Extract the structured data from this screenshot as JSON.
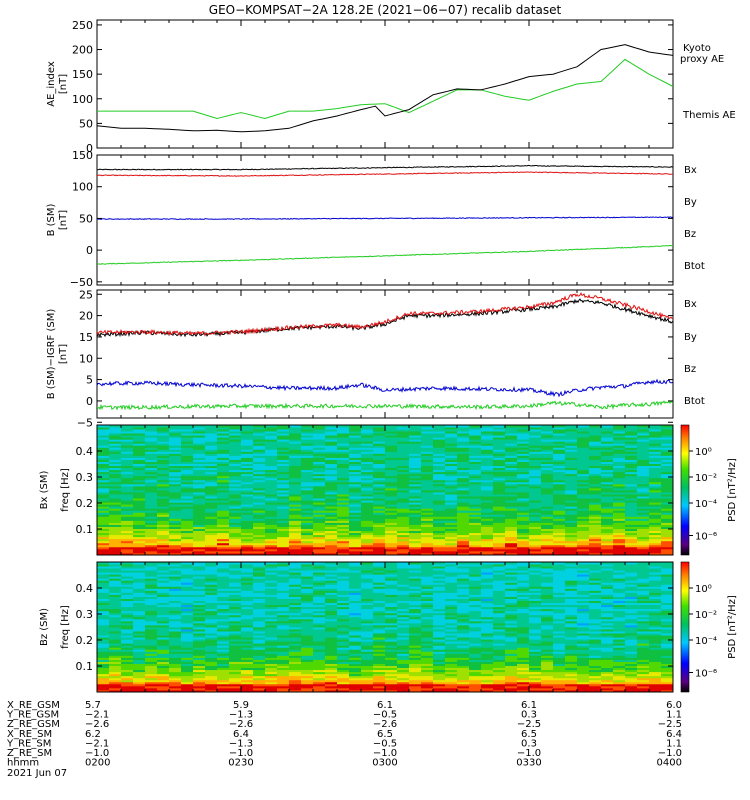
{
  "title": "GEO−KOMPSAT−2A 128.2E (2021−06−07) recalib dataset",
  "colors": {
    "black": "#000000",
    "red": "#e01010",
    "green": "#22cc22",
    "blue": "#0000d0"
  },
  "chart_data": [
    {
      "type": "line",
      "panel": "ae_index",
      "ylabel": [
        "AE_index",
        "[nT]"
      ],
      "ylim": [
        0,
        260
      ],
      "yticks": [
        0,
        50,
        100,
        150,
        200,
        250
      ],
      "xlim": [
        0,
        120
      ],
      "x_unit": "minutes after 0200 UT",
      "legend": [
        "Kyoto proxy AE",
        "Themis AE"
      ],
      "series": [
        {
          "name": "Kyoto proxy AE",
          "color": "#22cc22",
          "x": [
            0,
            10,
            20,
            25,
            30,
            35,
            40,
            45,
            50,
            55,
            60,
            65,
            70,
            75,
            80,
            85,
            90,
            95,
            100,
            105,
            110,
            115,
            120
          ],
          "values": [
            75,
            75,
            75,
            60,
            72,
            60,
            75,
            75,
            80,
            88,
            90,
            72,
            95,
            118,
            118,
            105,
            97,
            115,
            130,
            135,
            180,
            150,
            125
          ]
        },
        {
          "name": "Themis AE",
          "color": "#000000",
          "x": [
            0,
            5,
            10,
            15,
            20,
            25,
            30,
            35,
            40,
            45,
            50,
            55,
            58,
            60,
            65,
            70,
            75,
            80,
            85,
            90,
            95,
            100,
            105,
            110,
            115,
            120
          ],
          "values": [
            45,
            40,
            40,
            38,
            35,
            36,
            33,
            35,
            40,
            55,
            65,
            78,
            85,
            65,
            78,
            108,
            120,
            118,
            130,
            145,
            150,
            165,
            200,
            210,
            195,
            188
          ]
        }
      ]
    },
    {
      "type": "line",
      "panel": "b_sm",
      "ylabel": [
        "B (SM)",
        "[nT]"
      ],
      "ylim": [
        -55,
        150
      ],
      "yticks": [
        -50,
        0,
        50,
        100,
        150
      ],
      "xlim": [
        0,
        120
      ],
      "legend": [
        "Bx",
        "By",
        "Bz",
        "Btot"
      ],
      "series": [
        {
          "name": "Btot",
          "color": "#000000",
          "x": [
            0,
            30,
            60,
            90,
            120
          ],
          "values": [
            127,
            127,
            130,
            133,
            131
          ]
        },
        {
          "name": "Bz",
          "color": "#e01010",
          "x": [
            0,
            30,
            60,
            90,
            120
          ],
          "values": [
            118,
            117,
            120,
            123,
            120
          ]
        },
        {
          "name": "Bx",
          "color": "#0000d0",
          "x": [
            0,
            30,
            60,
            90,
            120
          ],
          "values": [
            49,
            49,
            50,
            51,
            52
          ]
        },
        {
          "name": "By",
          "color": "#22cc22",
          "x": [
            0,
            30,
            60,
            90,
            120
          ],
          "values": [
            -22,
            -16,
            -9,
            -2,
            7
          ]
        }
      ]
    },
    {
      "type": "line",
      "panel": "b_minus_igrf",
      "ylabel": [
        "B (SM)−IGRF (SM)",
        "[nT]"
      ],
      "ylim": [
        -4,
        26
      ],
      "yticks": [
        -5,
        0,
        5,
        10,
        15,
        20,
        25
      ],
      "xlim": [
        0,
        120
      ],
      "legend": [
        "Bx",
        "By",
        "Bz",
        "Btot"
      ],
      "series": [
        {
          "name": "Btot",
          "color": "#000000",
          "x": [
            0,
            10,
            20,
            30,
            40,
            50,
            55,
            60,
            65,
            70,
            80,
            90,
            95,
            100,
            105,
            110,
            115,
            120
          ],
          "values": [
            15.5,
            16,
            15.5,
            16,
            17,
            17.5,
            17,
            18,
            20,
            20,
            20.5,
            21.5,
            22,
            23.5,
            23,
            21.5,
            20,
            18.5
          ]
        },
        {
          "name": "Bz",
          "color": "#e01010",
          "x": [
            0,
            10,
            20,
            30,
            40,
            50,
            55,
            60,
            65,
            70,
            80,
            90,
            95,
            100,
            105,
            110,
            115,
            120
          ],
          "values": [
            16,
            16.2,
            15.8,
            16.2,
            17.2,
            17.8,
            17.3,
            18.5,
            20.5,
            20.5,
            21,
            22,
            23,
            25,
            24,
            22.5,
            21,
            19
          ]
        },
        {
          "name": "Bx",
          "color": "#0000d0",
          "x": [
            0,
            10,
            20,
            30,
            40,
            50,
            55,
            60,
            70,
            80,
            90,
            96,
            100,
            105,
            110,
            115,
            120
          ],
          "values": [
            4,
            4.2,
            3.8,
            3.5,
            3,
            3,
            3.8,
            2.5,
            3,
            2.8,
            2.6,
            1.5,
            2.5,
            3.2,
            3.5,
            4.5,
            4.5
          ]
        },
        {
          "name": "By",
          "color": "#22cc22",
          "x": [
            0,
            10,
            20,
            30,
            40,
            50,
            60,
            70,
            80,
            90,
            95,
            100,
            105,
            110,
            115,
            120
          ],
          "values": [
            -1.5,
            -1.5,
            -1.3,
            -1.2,
            -1.2,
            -1.2,
            -1.2,
            -1.3,
            -1.4,
            -1.2,
            -0.5,
            -0.8,
            -1.5,
            -1,
            -0.8,
            -0.2
          ]
        }
      ]
    },
    {
      "type": "heatmap",
      "panel": "bx_spectrogram",
      "ylabel": [
        "Bx (SM)",
        "freq [Hz]"
      ],
      "ylim": [
        0,
        0.5
      ],
      "yticks": [
        0.1,
        0.2,
        0.3,
        0.4
      ],
      "colorbar_label": "PSD [nT²/Hz]",
      "colorbar_ticks": [
        "10⁰",
        "10⁻²",
        "10⁻⁴",
        "10⁻⁶"
      ]
    },
    {
      "type": "heatmap",
      "panel": "bz_spectrogram",
      "ylabel": [
        "Bz (SM)",
        "freq [Hz]"
      ],
      "ylim": [
        0,
        0.5
      ],
      "yticks": [
        0.1,
        0.2,
        0.3,
        0.4
      ],
      "colorbar_label": "PSD [nT²/Hz]",
      "colorbar_ticks": [
        "10⁰",
        "10⁻²",
        "10⁻⁴",
        "10⁻⁶"
      ]
    }
  ],
  "ephemeris": {
    "row_labels": [
      "X_RE_GSM",
      "Y_RE_GSM",
      "Z_RE_GSM",
      "X_RE_SM",
      "Y_RE_SM",
      "Z_RE_SM",
      "hhmm"
    ],
    "columns": [
      [
        "5.7",
        "−2.1",
        "−2.6",
        "6.2",
        "−2.1",
        "−1.0",
        "0200"
      ],
      [
        "5.9",
        "−1.3",
        "−2.6",
        "6.4",
        "−1.3",
        "−1.0",
        "0230"
      ],
      [
        "6.1",
        "−0.5",
        "−2.6",
        "6.5",
        "−0.5",
        "−1.0",
        "0300"
      ],
      [
        "6.1",
        "0.3",
        "−2.5",
        "6.5",
        "0.3",
        "−1.0",
        "0330"
      ],
      [
        "6.0",
        "1.1",
        "−2.5",
        "6.4",
        "1.1",
        "−1.0",
        "0400"
      ]
    ],
    "date": "2021 Jun 07"
  }
}
